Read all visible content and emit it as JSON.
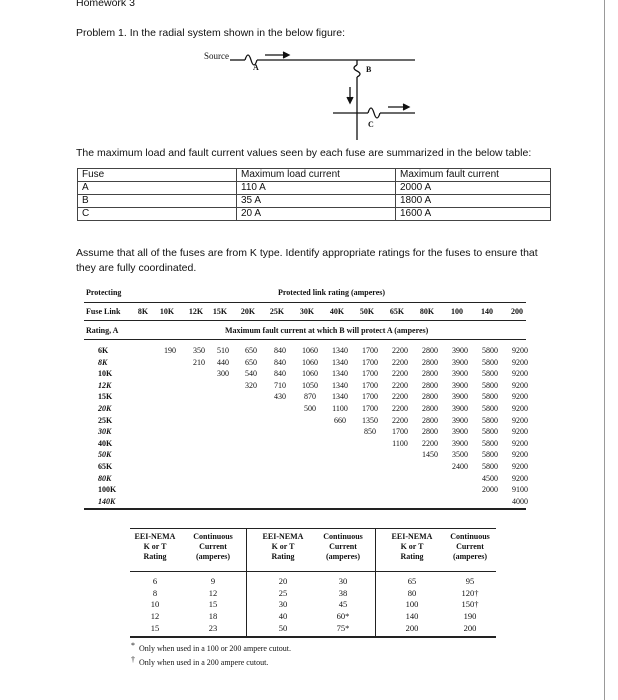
{
  "header_partial": "Homework 3",
  "problem_intro": "Problem 1. In the radial system shown in the below figure:",
  "figure": {
    "source_label": "Source",
    "fuse_labels": [
      "A",
      "B",
      "C"
    ]
  },
  "summary_intro": "The maximum load and fault current values seen by each fuse are summarized in the below table:",
  "summary_table": {
    "headers": [
      "Fuse",
      "Maximum load current",
      "Maximum fault current"
    ],
    "rows": [
      [
        "A",
        "110 A",
        "2000 A"
      ],
      [
        "B",
        "35 A",
        "1800 A"
      ],
      [
        "C",
        "20 A",
        "1600 A"
      ]
    ]
  },
  "assume_text": [
    "Assume that all of the fuses are from K type. Identify appropriate ratings for the fuses to ensure that",
    "they are fully coordinated."
  ],
  "coord_table": {
    "protecting_label": "Protecting",
    "protected_title": "Protected link rating (amperes)",
    "fuse_link_label": "Fuse Link",
    "rating_label": "Rating, A",
    "subtitle": "Maximum fault current at which B will protect A (amperes)",
    "columns": [
      "8K",
      "10K",
      "12K",
      "15K",
      "20K",
      "25K",
      "30K",
      "40K",
      "50K",
      "65K",
      "80K",
      "100",
      "140",
      "200"
    ],
    "rows": [
      {
        "label": "6K",
        "values": [
          "",
          "190",
          "350",
          "510",
          "650",
          "840",
          "1060",
          "1340",
          "1700",
          "2200",
          "2800",
          "3900",
          "5800",
          "9200"
        ]
      },
      {
        "label": "8K",
        "values": [
          "",
          "",
          "210",
          "440",
          "650",
          "840",
          "1060",
          "1340",
          "1700",
          "2200",
          "2800",
          "3900",
          "5800",
          "9200"
        ]
      },
      {
        "label": "10K",
        "values": [
          "",
          "",
          "",
          "300",
          "540",
          "840",
          "1060",
          "1340",
          "1700",
          "2200",
          "2800",
          "3900",
          "5800",
          "9200"
        ]
      },
      {
        "label": "12K",
        "values": [
          "",
          "",
          "",
          "",
          "320",
          "710",
          "1050",
          "1340",
          "1700",
          "2200",
          "2800",
          "3900",
          "5800",
          "9200"
        ]
      },
      {
        "label": "15K",
        "values": [
          "",
          "",
          "",
          "",
          "",
          "430",
          "870",
          "1340",
          "1700",
          "2200",
          "2800",
          "3900",
          "5800",
          "9200"
        ]
      },
      {
        "label": "20K",
        "values": [
          "",
          "",
          "",
          "",
          "",
          "",
          "500",
          "1100",
          "1700",
          "2200",
          "2800",
          "3900",
          "5800",
          "9200"
        ]
      },
      {
        "label": "25K",
        "values": [
          "",
          "",
          "",
          "",
          "",
          "",
          "",
          "660",
          "1350",
          "2200",
          "2800",
          "3900",
          "5800",
          "9200"
        ]
      },
      {
        "label": "30K",
        "values": [
          "",
          "",
          "",
          "",
          "",
          "",
          "",
          "",
          "850",
          "1700",
          "2800",
          "3900",
          "5800",
          "9200"
        ]
      },
      {
        "label": "40K",
        "values": [
          "",
          "",
          "",
          "",
          "",
          "",
          "",
          "",
          "",
          "1100",
          "2200",
          "3900",
          "5800",
          "9200"
        ]
      },
      {
        "label": "50K",
        "values": [
          "",
          "",
          "",
          "",
          "",
          "",
          "",
          "",
          "",
          "",
          "1450",
          "3500",
          "5800",
          "9200"
        ]
      },
      {
        "label": "65K",
        "values": [
          "",
          "",
          "",
          "",
          "",
          "",
          "",
          "",
          "",
          "",
          "",
          "2400",
          "5800",
          "9200"
        ]
      },
      {
        "label": "80K",
        "values": [
          "",
          "",
          "",
          "",
          "",
          "",
          "",
          "",
          "",
          "",
          "",
          "",
          "4500",
          "9200"
        ]
      },
      {
        "label": "100K",
        "values": [
          "",
          "",
          "",
          "",
          "",
          "",
          "",
          "",
          "",
          "",
          "",
          "",
          "2000",
          "9100"
        ]
      },
      {
        "label": "140K",
        "values": [
          "",
          "",
          "",
          "",
          "",
          "",
          "",
          "",
          "",
          "",
          "",
          "",
          "",
          "4000"
        ]
      }
    ]
  },
  "nema_table": {
    "headers": [
      "EEI-NEMA\nK or T\nRating",
      "Continuous\nCurrent\n(amperes)"
    ],
    "groups": [
      {
        "ratings": [
          "6",
          "8",
          "10",
          "12",
          "15"
        ],
        "currents": [
          "9",
          "12",
          "15",
          "18",
          "23"
        ]
      },
      {
        "ratings": [
          "20",
          "25",
          "30",
          "40",
          "50"
        ],
        "currents": [
          "30",
          "38",
          "45",
          "60*",
          "75*"
        ]
      },
      {
        "ratings": [
          "65",
          "80",
          "100",
          "140",
          "200"
        ],
        "currents": [
          "95",
          "120†",
          "150†",
          "190",
          "200"
        ]
      }
    ],
    "footnotes": [
      {
        "mark": "*",
        "text": "Only when used in a 100 or 200 ampere cutout."
      },
      {
        "mark": "†",
        "text": "Only when used in a 200 ampere cutout."
      }
    ]
  }
}
